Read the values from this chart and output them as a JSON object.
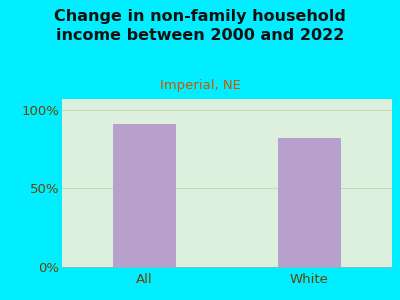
{
  "title": "Change in non-family household\nincome between 2000 and 2022",
  "subtitle": "Imperial, NE",
  "categories": [
    "All",
    "White"
  ],
  "values": [
    91,
    82
  ],
  "bar_color": "#b8a0cc",
  "background_color": "#00eeff",
  "plot_bg_color_left": "#ddeedd",
  "plot_bg_color_right": "#f0f0e8",
  "title_color": "#111111",
  "subtitle_color": "#cc5500",
  "axis_label_color": "#664400",
  "yticks": [
    0,
    50,
    100
  ],
  "ytick_labels": [
    "0%",
    "50%",
    "100%"
  ],
  "ylim": [
    0,
    107
  ],
  "title_fontsize": 11.5,
  "subtitle_fontsize": 9.5,
  "tick_fontsize": 9.5,
  "bar_width": 0.38,
  "grid_color": "#c0d8b8"
}
